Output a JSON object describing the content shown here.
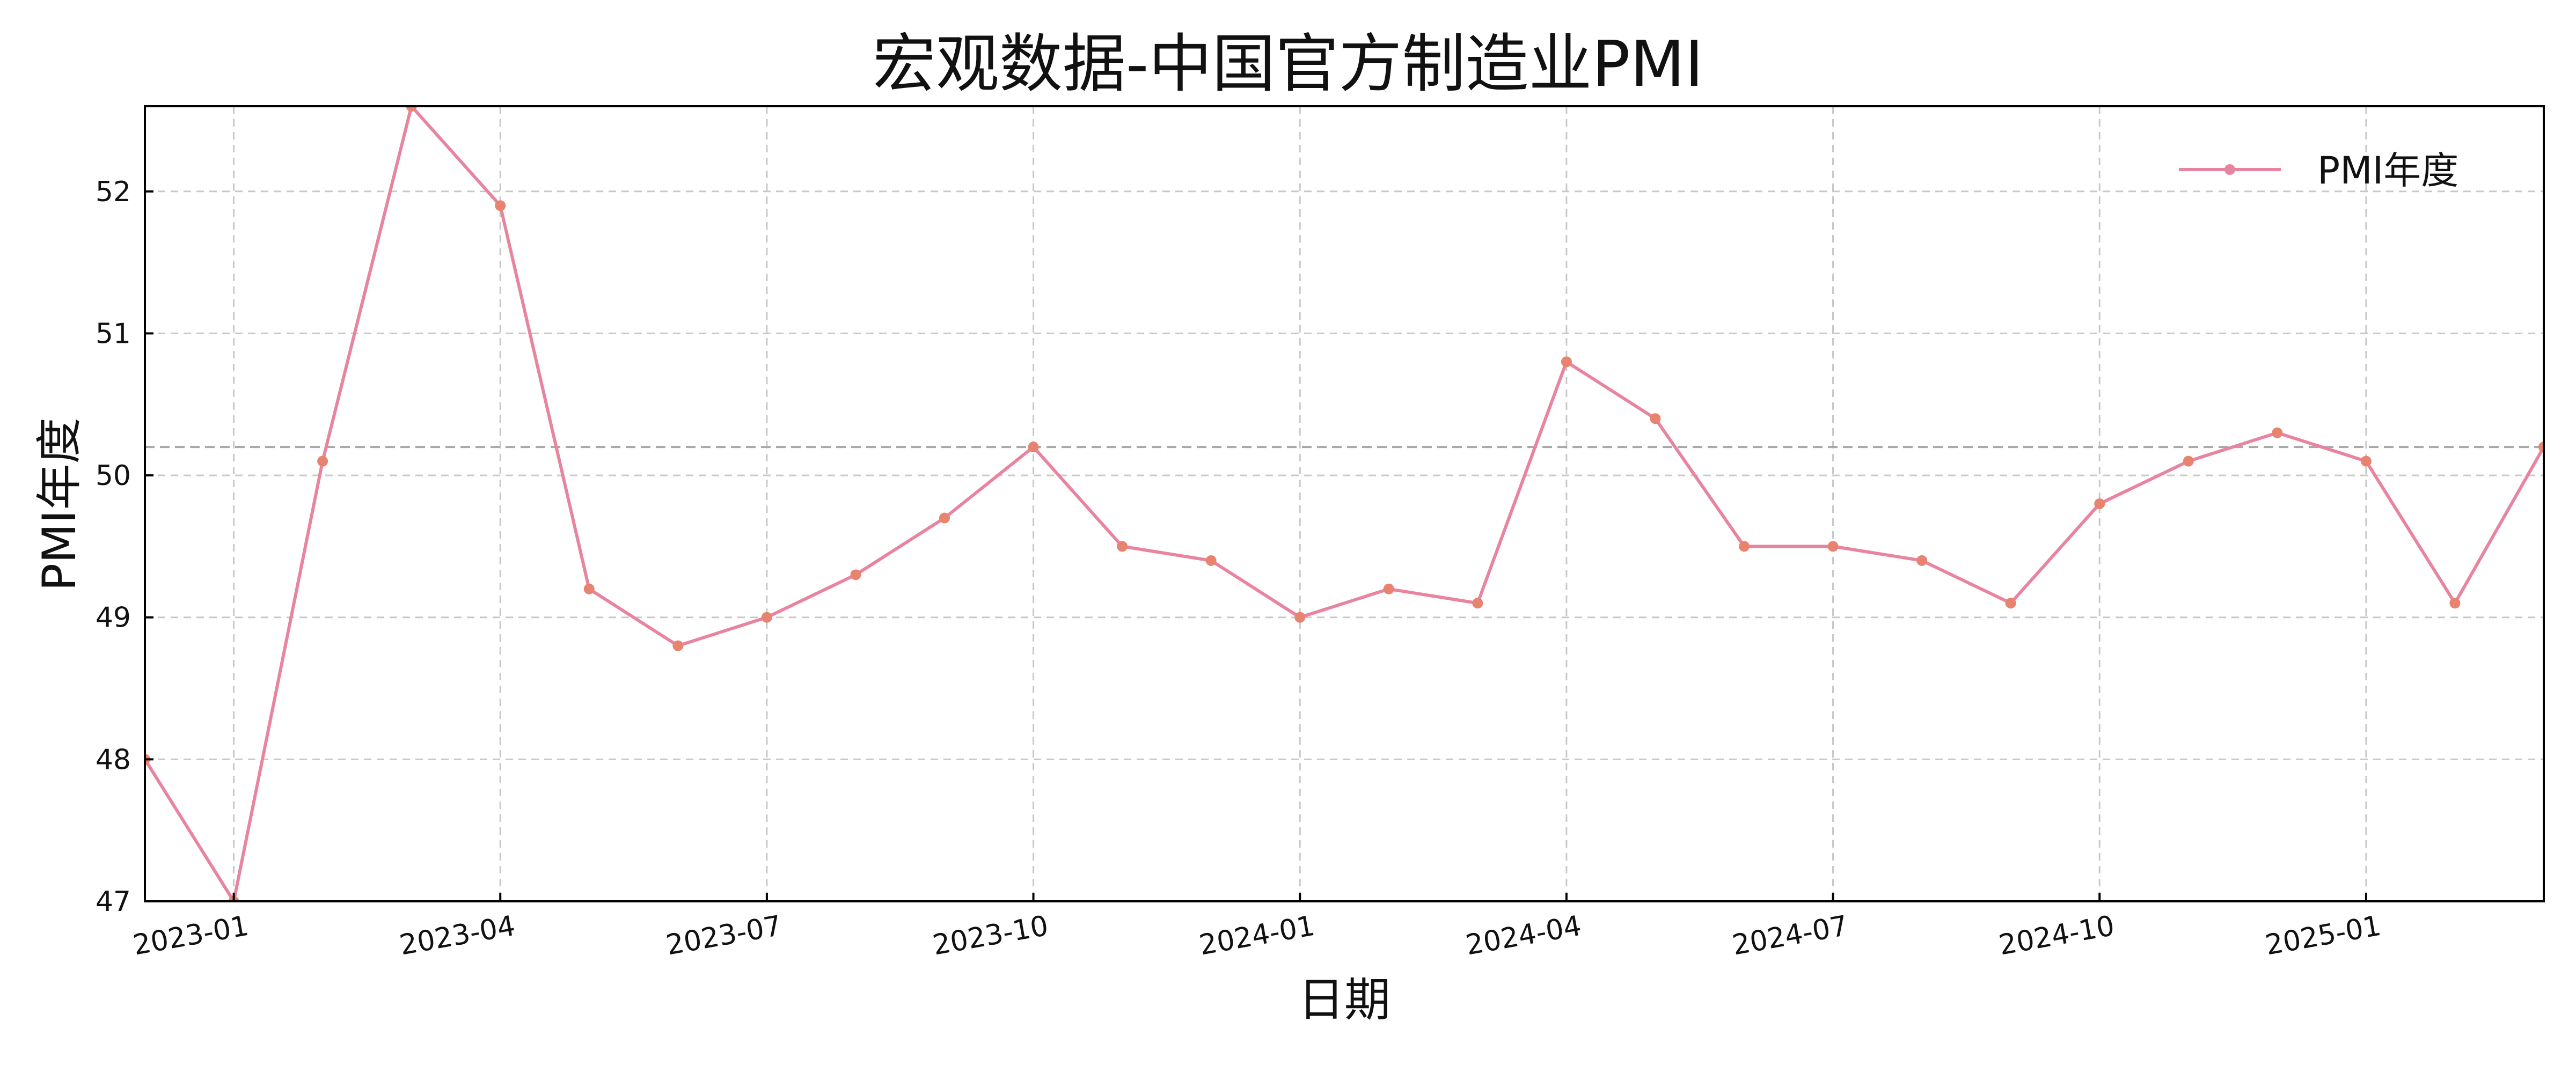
{
  "chart_data": {
    "type": "line",
    "title": "宏观数据-中国官方制造业PMI",
    "xlabel": "日期",
    "ylabel": "PMI年度",
    "x": [
      "2022-12",
      "2023-01",
      "2023-02",
      "2023-03",
      "2023-04",
      "2023-05",
      "2023-06",
      "2023-07",
      "2023-08",
      "2023-09",
      "2023-10",
      "2023-11",
      "2023-12",
      "2024-01",
      "2024-02",
      "2024-03",
      "2024-04",
      "2024-05",
      "2024-06",
      "2024-07",
      "2024-08",
      "2024-09",
      "2024-10",
      "2024-11",
      "2024-12",
      "2025-01",
      "2025-02",
      "2025-03"
    ],
    "series": [
      {
        "name": "PMI年度",
        "values": [
          48.0,
          47.0,
          50.1,
          52.6,
          51.9,
          49.2,
          48.8,
          49.0,
          49.3,
          49.7,
          50.2,
          49.5,
          49.4,
          49.0,
          49.2,
          49.1,
          50.8,
          50.4,
          49.5,
          49.5,
          49.4,
          49.1,
          49.8,
          50.1,
          50.3,
          50.1,
          49.1,
          50.2
        ],
        "color": "#e8849f",
        "marker_color": "#e8836f"
      }
    ],
    "reference_line": {
      "y": 50.2,
      "color": "#a8a8a8"
    },
    "x_ticks": [
      "2023-01",
      "2023-04",
      "2023-07",
      "2023-10",
      "2024-01",
      "2024-04",
      "2024-07",
      "2024-10",
      "2025-01"
    ],
    "y_ticks": [
      47,
      48,
      49,
      50,
      51,
      52
    ],
    "ylim": [
      47,
      52.6
    ],
    "xlim": [
      "2022-12",
      "2025-03"
    ],
    "grid": true,
    "legend_position": "top-right"
  }
}
